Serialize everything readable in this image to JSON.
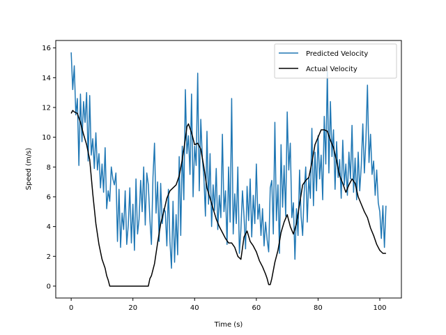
{
  "chart_data": {
    "type": "line",
    "title": "",
    "xlabel": "Time (s)",
    "ylabel": "Speed (m/s)",
    "xlim": [
      -5,
      107
    ],
    "ylim": [
      -0.8,
      16.5
    ],
    "xticks": [
      0,
      20,
      40,
      60,
      80,
      100
    ],
    "yticks": [
      0,
      2,
      4,
      6,
      8,
      10,
      12,
      14,
      16
    ],
    "grid": false,
    "legend_position": "top-right",
    "series": [
      {
        "name": "Predicted Velocity",
        "color": "#1f77b4",
        "x": [
          0,
          0.5,
          1,
          1.5,
          2,
          2.5,
          3,
          3.5,
          4,
          4.5,
          5,
          5.5,
          6,
          6.5,
          7,
          7.5,
          8,
          8.5,
          9,
          9.5,
          10,
          10.5,
          11,
          11.5,
          12,
          12.5,
          13,
          13.5,
          14,
          14.5,
          15,
          15.5,
          16,
          16.5,
          17,
          17.5,
          18,
          18.5,
          19,
          19.5,
          20,
          20.5,
          21,
          21.5,
          22,
          22.5,
          23,
          23.5,
          24,
          24.5,
          25,
          25.5,
          26,
          26.5,
          27,
          27.5,
          28,
          28.5,
          29,
          29.5,
          30,
          30.5,
          31,
          31.5,
          32,
          32.5,
          33,
          33.5,
          34,
          34.5,
          35,
          35.5,
          36,
          36.5,
          37,
          37.5,
          38,
          38.5,
          39,
          39.5,
          40,
          40.5,
          41,
          41.5,
          42,
          42.5,
          43,
          43.5,
          44,
          44.5,
          45,
          45.5,
          46,
          46.5,
          47,
          47.5,
          48,
          48.5,
          49,
          49.5,
          50,
          50.5,
          51,
          51.5,
          52,
          52.5,
          53,
          53.5,
          54,
          54.5,
          55,
          55.5,
          56,
          56.5,
          57,
          57.5,
          58,
          58.5,
          59,
          59.5,
          60,
          60.5,
          61,
          61.5,
          62,
          62.5,
          63,
          63.5,
          64,
          64.5,
          65,
          65.5,
          66,
          66.5,
          67,
          67.5,
          68,
          68.5,
          69,
          69.5,
          70,
          70.5,
          71,
          71.5,
          72,
          72.5,
          73,
          73.5,
          74,
          74.5,
          75,
          75.5,
          76,
          76.5,
          77,
          77.5,
          78,
          78.5,
          79,
          79.5,
          80,
          80.5,
          81,
          81.5,
          82,
          82.5,
          83,
          83.5,
          84,
          84.5,
          85,
          85.5,
          86,
          86.5,
          87,
          87.5,
          88,
          88.5,
          89,
          89.5,
          90,
          90.5,
          91,
          91.5,
          92,
          92.5,
          93,
          93.5,
          94,
          94.5,
          95,
          95.5,
          96,
          96.5,
          97,
          97.5,
          98,
          98.5,
          99,
          99.5,
          100,
          100.5,
          101,
          101.5,
          102
        ],
        "y": [
          15.7,
          13.2,
          14.8,
          11.5,
          12.6,
          8.1,
          12.9,
          9.7,
          12.4,
          11.0,
          13.0,
          8.4,
          12.8,
          8.8,
          9.9,
          7.9,
          10.3,
          7.8,
          8.9,
          6.6,
          8.2,
          6.3,
          9.3,
          5.2,
          6.4,
          5.7,
          8.0,
          7.2,
          6.8,
          7.6,
          3.0,
          6.5,
          2.6,
          4.9,
          3.8,
          6.4,
          2.8,
          4.1,
          6.6,
          2.9,
          5.5,
          2.4,
          7.2,
          3.5,
          4.5,
          7.1,
          5.0,
          8.0,
          4.1,
          7.6,
          6.8,
          4.5,
          2.8,
          7.3,
          9.6,
          4.9,
          7.0,
          3.0,
          6.9,
          4.2,
          5.2,
          5.0,
          2.7,
          6.5,
          3.0,
          1.2,
          5.7,
          1.6,
          4.8,
          2.1,
          8.7,
          3.4,
          9.4,
          5.8,
          13.2,
          8.9,
          10.1,
          7.5,
          12.9,
          6.0,
          9.4,
          8.1,
          14.3,
          6.4,
          11.2,
          8.6,
          7.3,
          4.7,
          10.4,
          5.5,
          8.9,
          4.0,
          6.8,
          5.1,
          7.9,
          3.8,
          6.1,
          4.6,
          10.2,
          5.0,
          6.4,
          2.8,
          8.0,
          4.3,
          12.6,
          3.5,
          6.2,
          4.2,
          8.0,
          2.2,
          3.8,
          6.4,
          4.7,
          2.5,
          6.7,
          4.4,
          7.2,
          3.3,
          6.1,
          4.2,
          8.2,
          4.5,
          5.5,
          3.4,
          5.2,
          2.7,
          4.3,
          3.1,
          2.3,
          6.6,
          7.1,
          3.5,
          11.0,
          4.4,
          6.8,
          2.2,
          9.5,
          5.3,
          8.1,
          4.7,
          11.7,
          7.8,
          9.6,
          4.6,
          5.6,
          1.8,
          5.2,
          3.4,
          7.8,
          4.7,
          3.4,
          6.3,
          8.0,
          4.3,
          7.3,
          5.9,
          10.6,
          5.4,
          9.0,
          6.4,
          10.1,
          7.2,
          8.8,
          5.8,
          11.4,
          8.2,
          14.4,
          7.6,
          12.4,
          8.7,
          10.5,
          6.5,
          9.7,
          7.3,
          8.5,
          5.9,
          9.8,
          6.8,
          8.2,
          6.1,
          9.0,
          7.2,
          10.8,
          6.3,
          8.6,
          5.8,
          9.0,
          6.4,
          8.1,
          10.9,
          7.6,
          9.8,
          13.5,
          8.3,
          10.2,
          7.5,
          8.4,
          6.1,
          7.8,
          5.6,
          5.0,
          3.2,
          5.4,
          2.6,
          5.4
        ]
      },
      {
        "name": "Actual Velocity",
        "color": "#000000",
        "x": [
          0,
          0.5,
          1,
          2,
          3,
          4,
          5,
          6,
          7,
          8,
          9,
          10,
          11,
          11.5,
          12,
          12.5,
          13,
          15,
          20,
          24,
          25,
          25.5,
          26,
          27,
          28,
          29,
          30,
          31,
          32,
          33,
          34,
          35,
          36,
          37,
          37.5,
          38,
          39,
          40,
          41,
          42,
          43,
          44,
          45,
          46,
          47,
          48,
          49,
          50,
          51,
          52,
          53,
          54,
          55,
          56,
          57,
          58,
          59,
          60,
          61,
          62,
          63,
          63.5,
          64,
          64.5,
          65,
          66,
          67,
          68,
          69,
          70,
          71,
          72,
          73,
          74,
          75,
          76,
          77,
          78,
          79,
          80,
          81,
          82,
          83,
          84,
          85,
          86,
          87,
          88,
          89,
          90,
          91,
          92,
          93,
          94,
          95,
          96,
          97,
          98,
          99,
          100,
          101,
          102
        ],
        "y": [
          11.6,
          11.8,
          11.7,
          11.6,
          11.0,
          10.2,
          9.5,
          8.5,
          6.2,
          4.2,
          2.8,
          1.8,
          1.2,
          0.7,
          0.4,
          0.0,
          0.0,
          0.0,
          0.0,
          0.0,
          0.0,
          0.5,
          0.7,
          1.5,
          2.9,
          4.2,
          5.0,
          5.9,
          6.4,
          6.6,
          6.8,
          7.4,
          8.5,
          9.9,
          10.7,
          10.9,
          10.3,
          9.5,
          9.6,
          9.2,
          8.0,
          6.6,
          5.9,
          5.2,
          4.5,
          4.0,
          3.6,
          3.2,
          2.9,
          2.9,
          2.6,
          2.0,
          1.8,
          3.3,
          3.7,
          3.0,
          2.7,
          2.3,
          1.7,
          1.3,
          0.8,
          0.5,
          0.1,
          0.1,
          0.5,
          1.6,
          2.4,
          3.6,
          4.3,
          4.8,
          4.0,
          3.5,
          4.2,
          5.5,
          6.8,
          7.1,
          7.3,
          8.3,
          9.5,
          10.0,
          10.5,
          10.5,
          10.4,
          9.8,
          9.3,
          8.4,
          7.4,
          6.9,
          6.3,
          6.8,
          7.2,
          6.9,
          6.0,
          5.5,
          5.0,
          4.6,
          3.9,
          3.4,
          2.8,
          2.4,
          2.2,
          2.2
        ]
      }
    ]
  }
}
